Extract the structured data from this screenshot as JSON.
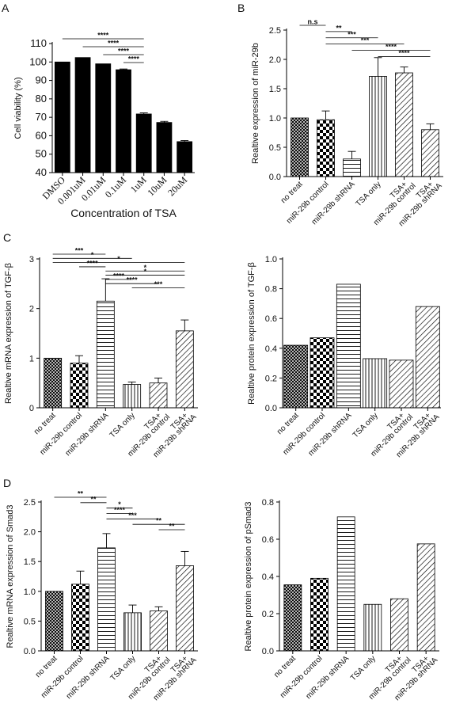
{
  "panels": [
    {
      "id": "A",
      "type": "bar",
      "ylabel": "Cell viability (%)",
      "xlabel": "Concentration of TSA",
      "ylim": [
        40,
        110
      ],
      "yticks": [
        40,
        50,
        60,
        70,
        80,
        90,
        100,
        110
      ],
      "categories": [
        "DMSO",
        "0.001uM",
        "0.01uM",
        "0.1uM",
        "1uM",
        "10uM",
        "20uM"
      ],
      "values": [
        100,
        102.4,
        99,
        95.8,
        71.8,
        67.2,
        56.8
      ],
      "errors": [
        0,
        0,
        0,
        0.4,
        0.6,
        0.6,
        0.6
      ],
      "fills": [
        "black",
        "black",
        "black",
        "black",
        "black",
        "black",
        "black"
      ],
      "sig": [
        {
          "from": 0,
          "to": 4,
          "label": "****"
        },
        {
          "from": 1,
          "to": 4,
          "label": "****"
        },
        {
          "from": 2,
          "to": 4,
          "label": "****"
        },
        {
          "from": 3,
          "to": 4,
          "label": "****"
        }
      ]
    },
    {
      "id": "B",
      "type": "bar",
      "ylabel": "Realtive expression of miR-29b",
      "ylim": [
        0,
        2.5
      ],
      "yticks": [
        0.0,
        0.5,
        1.0,
        1.5,
        2.0,
        2.5
      ],
      "categories": [
        "no treat",
        "miR-29b control",
        "miR-29b shRNA",
        "TSA only",
        "TSA+ miR-29b control",
        "TSA+ miR-29b shRNA"
      ],
      "values": [
        1.0,
        0.97,
        0.3,
        1.71,
        1.77,
        0.8
      ],
      "errors": [
        0,
        0.15,
        0.13,
        0.32,
        0.1,
        0.1
      ],
      "fills": [
        "cross",
        "checker",
        "hlines",
        "vlines",
        "diag",
        "diag"
      ],
      "sig": [
        {
          "from": 0,
          "to": 1,
          "label": "n.s"
        },
        {
          "from": 1,
          "to": 2,
          "label": "**"
        },
        {
          "from": 1,
          "to": 3,
          "label": "***"
        },
        {
          "from": 1,
          "to": 4,
          "label": "***"
        },
        {
          "from": 2,
          "to": 5,
          "label": "****"
        },
        {
          "from": 3,
          "to": 5,
          "label": "****"
        }
      ]
    },
    {
      "id": "C",
      "type": "bar",
      "ylabel": "Realtive mRNA expression of TGF-β",
      "ylim": [
        0,
        3
      ],
      "yticks": [
        0,
        1,
        2,
        3
      ],
      "categories": [
        "no treat",
        "miR-29b control",
        "miR-29b shRNA",
        "TSA only",
        "TSA+ miR-29b control",
        "TSA+ miR-29b shRNA"
      ],
      "values": [
        1.0,
        0.9,
        2.15,
        0.47,
        0.5,
        1.55
      ],
      "errors": [
        0,
        0.15,
        0.45,
        0.05,
        0.1,
        0.22
      ],
      "fills": [
        "cross",
        "checker",
        "hlines",
        "vlines",
        "diag",
        "diag"
      ],
      "sig": [
        {
          "from": 0,
          "to": 2,
          "label": "***"
        },
        {
          "from": 0,
          "to": 3,
          "label": "*"
        },
        {
          "from": 0,
          "to": 5,
          "label": "*"
        },
        {
          "from": 1,
          "to": 2,
          "label": "****"
        },
        {
          "from": 2,
          "to": 5,
          "label": "*"
        },
        {
          "from": 2,
          "to": 5,
          "label": "*"
        },
        {
          "from": 2,
          "to": 3,
          "label": "****"
        },
        {
          "from": 2,
          "to": 4,
          "label": "****"
        },
        {
          "from": 3,
          "to": 5,
          "label": "***"
        }
      ]
    },
    {
      "id": "",
      "type": "bar",
      "ylabel": "Realtive protein expression of TGF-β",
      "ylim": [
        0,
        1.0
      ],
      "yticks": [
        0.0,
        0.2,
        0.4,
        0.6,
        0.8,
        1.0
      ],
      "categories": [
        "no treat",
        "miR-29b control",
        "miR-29b shRNA",
        "TSA only",
        "TSA+ miR-29b control",
        "TSA+ miR-29b shRNA"
      ],
      "values": [
        0.42,
        0.47,
        0.83,
        0.33,
        0.32,
        0.68
      ],
      "errors": [
        0,
        0,
        0,
        0,
        0,
        0
      ],
      "fills": [
        "cross",
        "checker",
        "hlines",
        "vlines",
        "diag",
        "diag"
      ],
      "sig": []
    },
    {
      "id": "D",
      "type": "bar",
      "ylabel": "Realtive mRNA expression of Smad3",
      "ylim": [
        0,
        2.5
      ],
      "yticks": [
        0.0,
        0.5,
        1.0,
        1.5,
        2.0,
        2.5
      ],
      "categories": [
        "no treat",
        "miR-29b control",
        "miR-29b shRNA",
        "TSA only",
        "TSA+ miR-29b control",
        "TSA+ miR-29b shRNA"
      ],
      "values": [
        1.0,
        1.12,
        1.73,
        0.64,
        0.67,
        1.43
      ],
      "errors": [
        0,
        0.22,
        0.24,
        0.13,
        0.07,
        0.24
      ],
      "fills": [
        "cross",
        "checker",
        "hlines",
        "vlines",
        "diag",
        "diag"
      ],
      "sig": [
        {
          "from": 0,
          "to": 2,
          "label": "**"
        },
        {
          "from": 1,
          "to": 2,
          "label": "**"
        },
        {
          "from": 2,
          "to": 3,
          "label": "*"
        },
        {
          "from": 2,
          "to": 3,
          "label": "****"
        },
        {
          "from": 2,
          "to": 4,
          "label": "***"
        },
        {
          "from": 3,
          "to": 5,
          "label": "**"
        },
        {
          "from": 4,
          "to": 5,
          "label": "**"
        }
      ]
    },
    {
      "id": "",
      "type": "bar",
      "ylabel": "Realtive protein expression of pSmad3",
      "ylim": [
        0,
        0.8
      ],
      "yticks": [
        0.0,
        0.2,
        0.4,
        0.6,
        0.8
      ],
      "categories": [
        "no treat",
        "miR-29b control",
        "miR-29b shRNA",
        "TSA only",
        "TSA+ miR-29b control",
        "TSA+ miR-29b shRNA"
      ],
      "values": [
        0.355,
        0.39,
        0.72,
        0.25,
        0.28,
        0.575
      ],
      "errors": [
        0,
        0,
        0,
        0,
        0,
        0
      ],
      "fills": [
        "cross",
        "checker",
        "hlines",
        "vlines",
        "diag",
        "diag"
      ],
      "sig": []
    }
  ],
  "chart_data": [
    {
      "type": "bar",
      "title": "A",
      "xlabel": "Concentration of TSA",
      "ylabel": "Cell viability (%)",
      "categories": [
        "DMSO",
        "0.001uM",
        "0.01uM",
        "0.1uM",
        "1uM",
        "10uM",
        "20uM"
      ],
      "values": [
        100,
        102.4,
        99,
        95.8,
        71.8,
        67.2,
        56.8
      ],
      "ylim": [
        40,
        110
      ]
    },
    {
      "type": "bar",
      "title": "B",
      "ylabel": "Realtive expression of miR-29b",
      "categories": [
        "no treat",
        "miR-29b control",
        "miR-29b shRNA",
        "TSA only",
        "TSA+ miR-29b control",
        "TSA+ miR-29b shRNA"
      ],
      "values": [
        1.0,
        0.97,
        0.3,
        1.71,
        1.77,
        0.8
      ],
      "ylim": [
        0,
        2.5
      ]
    },
    {
      "type": "bar",
      "title": "C",
      "ylabel": "Realtive mRNA expression of TGF-β",
      "categories": [
        "no treat",
        "miR-29b control",
        "miR-29b shRNA",
        "TSA only",
        "TSA+ miR-29b control",
        "TSA+ miR-29b shRNA"
      ],
      "values": [
        1.0,
        0.9,
        2.15,
        0.47,
        0.5,
        1.55
      ],
      "ylim": [
        0,
        3
      ]
    },
    {
      "type": "bar",
      "ylabel": "Realtive protein expression of TGF-β",
      "categories": [
        "no treat",
        "miR-29b control",
        "miR-29b shRNA",
        "TSA only",
        "TSA+ miR-29b control",
        "TSA+ miR-29b shRNA"
      ],
      "values": [
        0.42,
        0.47,
        0.83,
        0.33,
        0.32,
        0.68
      ],
      "ylim": [
        0,
        1.0
      ]
    },
    {
      "type": "bar",
      "title": "D",
      "ylabel": "Realtive mRNA expression of Smad3",
      "categories": [
        "no treat",
        "miR-29b control",
        "miR-29b shRNA",
        "TSA only",
        "TSA+ miR-29b control",
        "TSA+ miR-29b shRNA"
      ],
      "values": [
        1.0,
        1.12,
        1.73,
        0.64,
        0.67,
        1.43
      ],
      "ylim": [
        0,
        2.5
      ]
    },
    {
      "type": "bar",
      "ylabel": "Realtive protein expression of pSmad3",
      "categories": [
        "no treat",
        "miR-29b control",
        "miR-29b shRNA",
        "TSA only",
        "TSA+ miR-29b control",
        "TSA+ miR-29b shRNA"
      ],
      "values": [
        0.355,
        0.39,
        0.72,
        0.25,
        0.28,
        0.575
      ],
      "ylim": [
        0,
        0.8
      ]
    }
  ]
}
